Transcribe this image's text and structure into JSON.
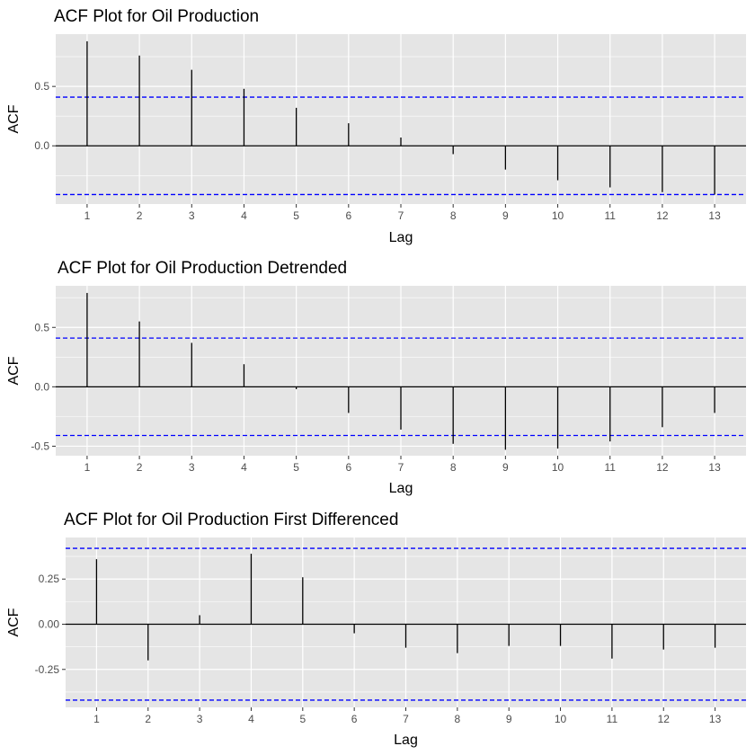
{
  "chart_data": [
    {
      "type": "bar",
      "title": "ACF Plot for Oil Production",
      "xlabel": "Lag",
      "ylabel": "ACF",
      "x": [
        1,
        2,
        3,
        4,
        5,
        6,
        7,
        8,
        9,
        10,
        11,
        12,
        13
      ],
      "values": [
        0.88,
        0.76,
        0.64,
        0.48,
        0.32,
        0.19,
        0.07,
        -0.07,
        -0.2,
        -0.29,
        -0.35,
        -0.39,
        -0.41
      ],
      "ylim": [
        -0.49,
        0.94
      ],
      "yticks": [
        -0.0,
        0.5
      ],
      "ytick_labels": [
        "0.0",
        "0.5"
      ],
      "ci": 0.41,
      "grid": true
    },
    {
      "type": "bar",
      "title": "ACF Plot for Oil Production Detrended",
      "xlabel": "Lag",
      "ylabel": "ACF",
      "x": [
        1,
        2,
        3,
        4,
        5,
        6,
        7,
        8,
        9,
        10,
        11,
        12,
        13
      ],
      "values": [
        0.79,
        0.55,
        0.37,
        0.19,
        -0.02,
        -0.22,
        -0.36,
        -0.48,
        -0.53,
        -0.52,
        -0.46,
        -0.34,
        -0.22
      ],
      "ylim": [
        -0.58,
        0.85
      ],
      "yticks": [
        -0.5,
        0.0,
        0.5
      ],
      "ytick_labels": [
        "-0.5",
        "0.0",
        "0.5"
      ],
      "ci": 0.41,
      "grid": true
    },
    {
      "type": "bar",
      "title": "ACF Plot for Oil Production First Differenced",
      "xlabel": "Lag",
      "ylabel": "ACF",
      "x": [
        1,
        2,
        3,
        4,
        5,
        6,
        7,
        8,
        9,
        10,
        11,
        12,
        13
      ],
      "values": [
        0.36,
        -0.2,
        0.05,
        0.39,
        0.26,
        -0.05,
        -0.13,
        -0.16,
        -0.12,
        -0.12,
        -0.19,
        -0.14,
        -0.13
      ],
      "ylim": [
        -0.46,
        0.48
      ],
      "yticks": [
        -0.25,
        0.0,
        0.25
      ],
      "ytick_labels": [
        "-0.25",
        "0.00",
        "0.25"
      ],
      "ci": 0.42,
      "grid": true
    }
  ],
  "colors": {
    "panel_bg": "#e5e5e5",
    "grid": "#ffffff",
    "bar": "#000000",
    "ci_line": "#0000ff",
    "tick_text": "#4d4d4d"
  }
}
